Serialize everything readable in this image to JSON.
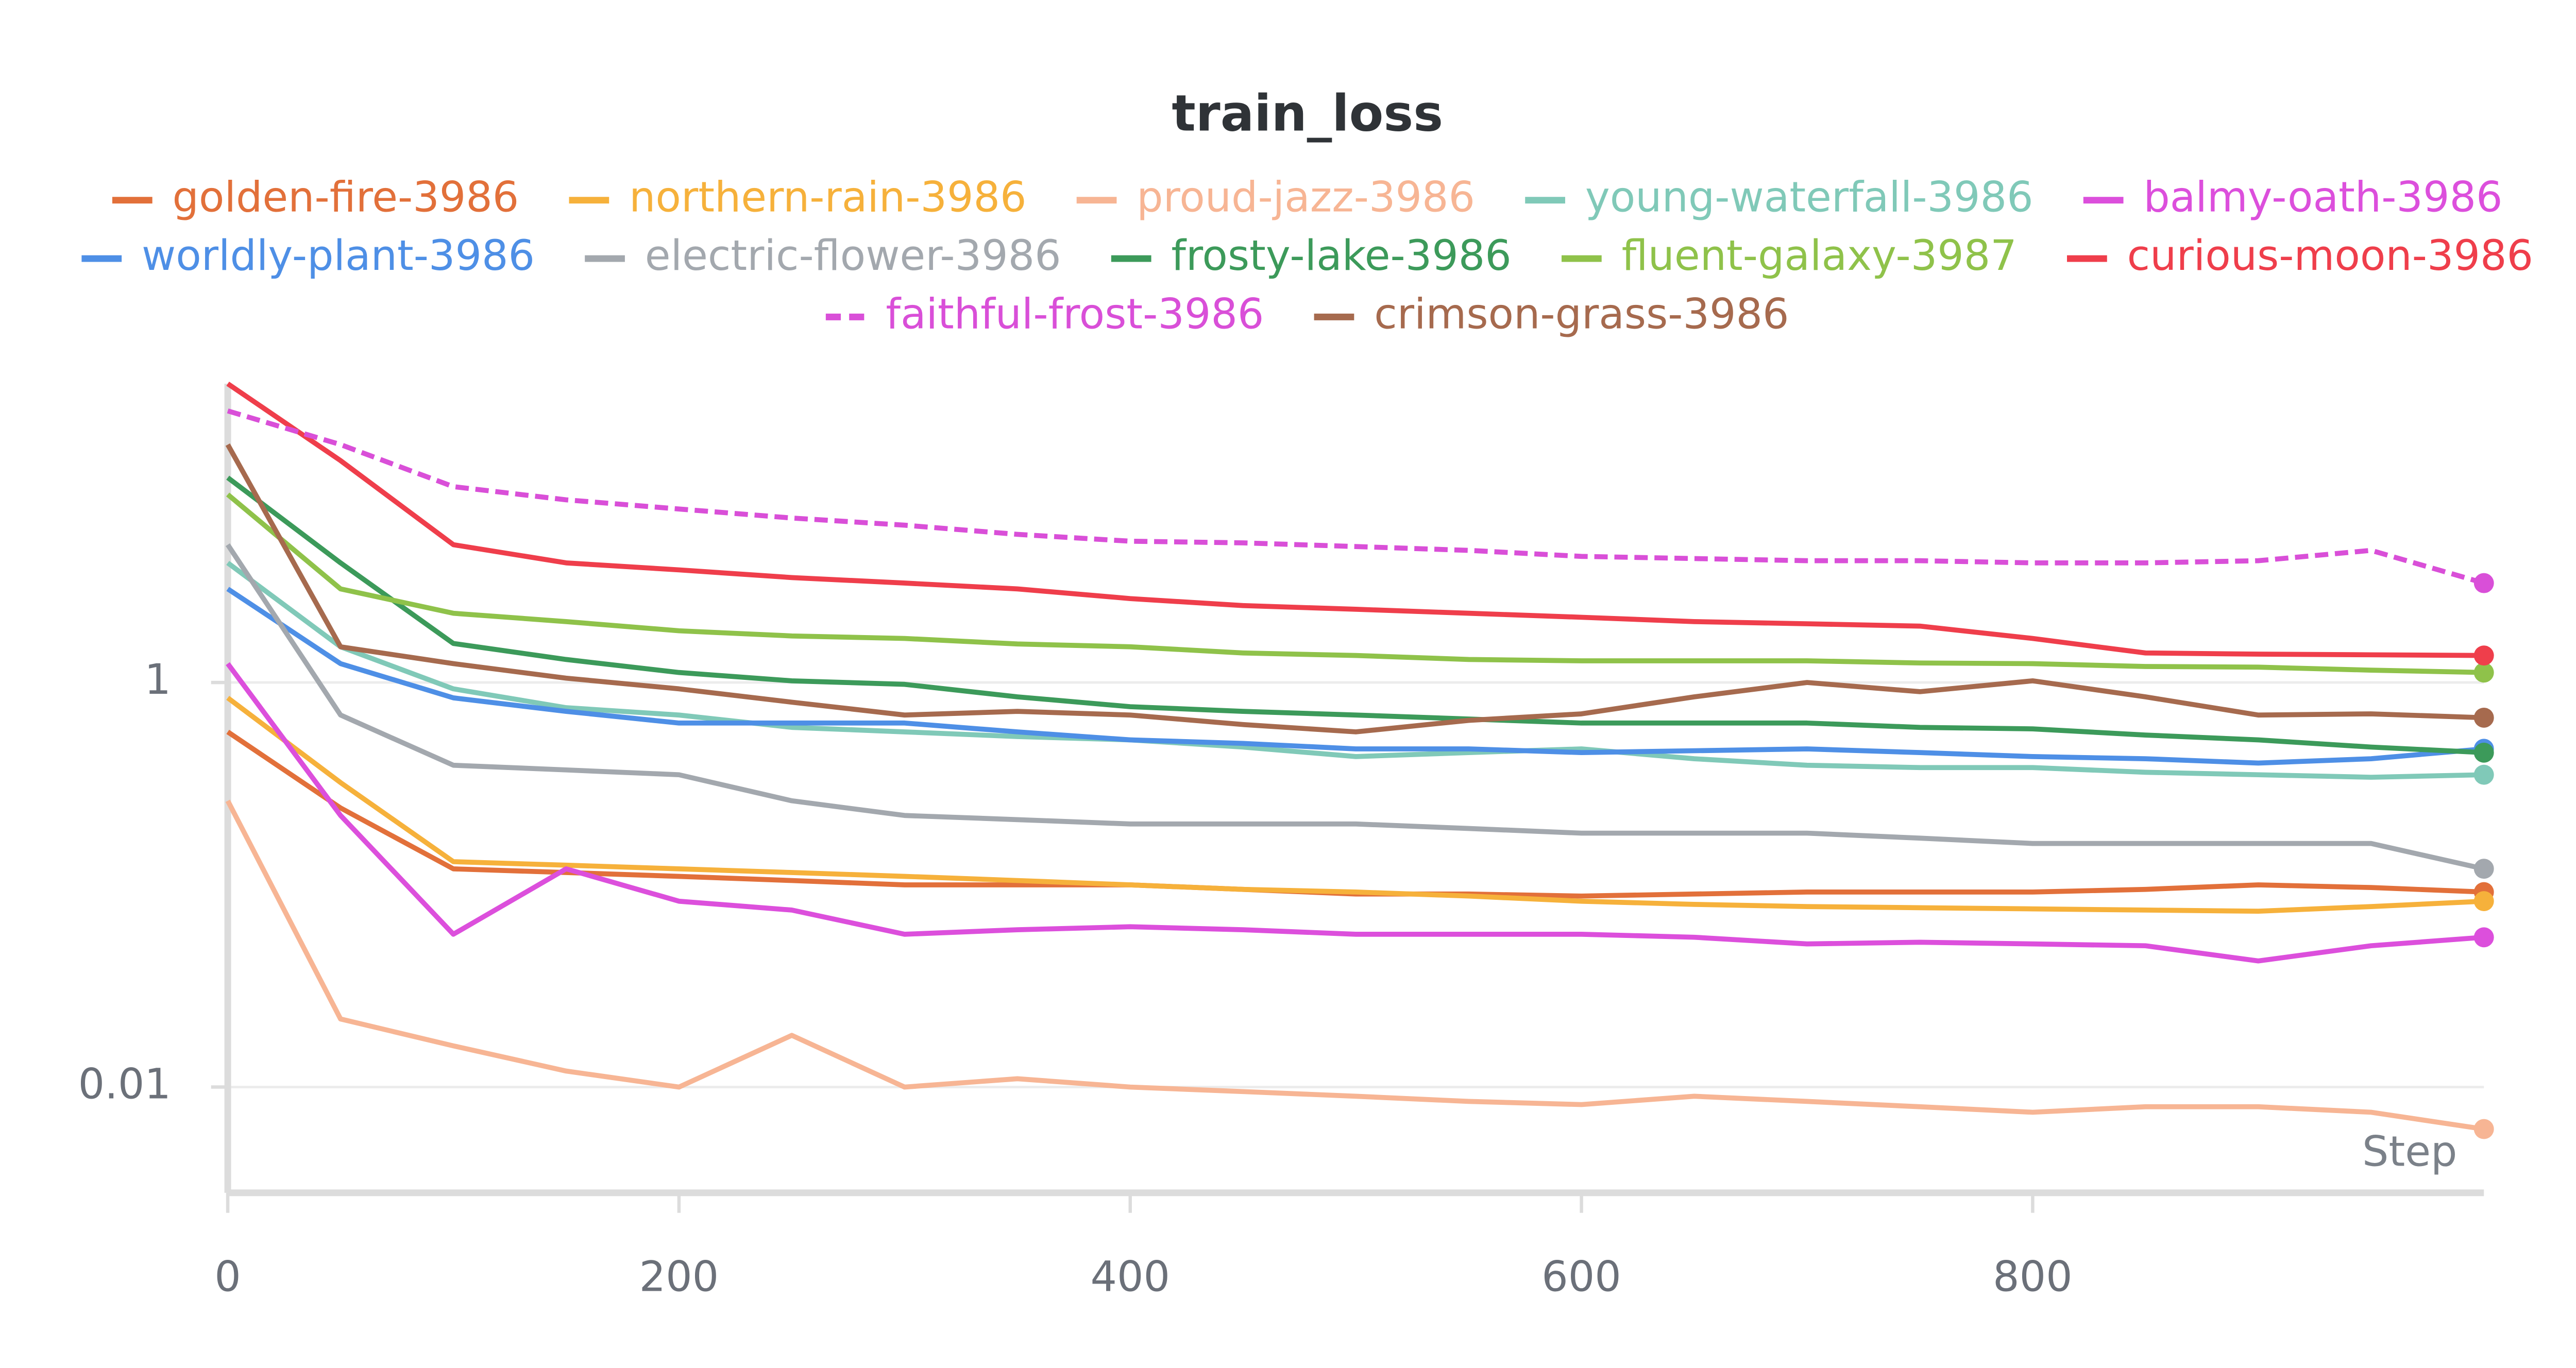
{
  "chart_data": {
    "type": "line",
    "title": "train_loss",
    "x_label": "Step",
    "xlim": [
      0,
      1000
    ],
    "xticks": [
      0,
      200,
      400,
      600,
      800
    ],
    "ylim": [
      0.003,
      30
    ],
    "yticks": [
      0.01,
      1
    ],
    "log_y": true,
    "grid": true,
    "x": [
      0,
      50,
      100,
      150,
      200,
      250,
      300,
      350,
      400,
      450,
      500,
      550,
      600,
      650,
      700,
      750,
      800,
      850,
      900,
      950,
      1000
    ],
    "series": [
      {
        "name": "golden-fire-3986",
        "color": "#e2703a",
        "values": [
          0.57,
          0.24,
          0.12,
          0.115,
          0.11,
          0.105,
          0.1,
          0.1,
          0.1,
          0.095,
          0.09,
          0.09,
          0.088,
          0.09,
          0.092,
          0.092,
          0.092,
          0.095,
          0.1,
          0.097,
          0.092
        ]
      },
      {
        "name": "northern-rain-3986",
        "color": "#f6b13b",
        "values": [
          0.84,
          0.32,
          0.13,
          0.125,
          0.12,
          0.115,
          0.11,
          0.105,
          0.1,
          0.095,
          0.092,
          0.088,
          0.083,
          0.08,
          0.078,
          0.077,
          0.076,
          0.075,
          0.074,
          0.078,
          0.083
        ]
      },
      {
        "name": "proud-jazz-3986",
        "color": "#f7b594",
        "values": [
          0.26,
          0.0217,
          0.016,
          0.012,
          0.01,
          0.018,
          0.01,
          0.011,
          0.01,
          0.0095,
          0.009,
          0.0085,
          0.0082,
          0.009,
          0.0085,
          0.008,
          0.0075,
          0.008,
          0.008,
          0.0075,
          0.0062
        ]
      },
      {
        "name": "young-waterfall-3986",
        "color": "#80c9b8",
        "values": [
          3.9,
          1.5,
          0.93,
          0.75,
          0.69,
          0.6,
          0.57,
          0.54,
          0.52,
          0.48,
          0.43,
          0.45,
          0.47,
          0.42,
          0.39,
          0.38,
          0.38,
          0.36,
          0.35,
          0.34,
          0.35
        ]
      },
      {
        "name": "balmy-oath-3986",
        "color": "#dc4fdc",
        "values": [
          1.24,
          0.22,
          0.057,
          0.12,
          0.083,
          0.075,
          0.057,
          0.06,
          0.062,
          0.06,
          0.057,
          0.057,
          0.057,
          0.055,
          0.051,
          0.052,
          0.051,
          0.05,
          0.042,
          0.05,
          0.055
        ]
      },
      {
        "name": "worldly-plant-3986",
        "color": "#4e8fe6",
        "values": [
          2.9,
          1.24,
          0.84,
          0.72,
          0.63,
          0.63,
          0.63,
          0.57,
          0.52,
          0.5,
          0.47,
          0.47,
          0.45,
          0.46,
          0.47,
          0.45,
          0.43,
          0.42,
          0.4,
          0.42,
          0.47
        ]
      },
      {
        "name": "electric-flower-3986",
        "color": "#a3a8ae",
        "values": [
          4.8,
          0.69,
          0.39,
          0.37,
          0.35,
          0.26,
          0.22,
          0.21,
          0.2,
          0.2,
          0.2,
          0.19,
          0.18,
          0.18,
          0.18,
          0.17,
          0.16,
          0.16,
          0.16,
          0.16,
          0.12
        ]
      },
      {
        "name": "frosty-lake-3986",
        "color": "#3c9a5a",
        "values": [
          10.3,
          3.9,
          1.56,
          1.3,
          1.12,
          1.02,
          0.98,
          0.85,
          0.76,
          0.72,
          0.69,
          0.66,
          0.63,
          0.63,
          0.63,
          0.6,
          0.59,
          0.55,
          0.52,
          0.48,
          0.45
        ]
      },
      {
        "name": "fluent-galaxy-3987",
        "color": "#8fc24a",
        "values": [
          8.5,
          2.9,
          2.2,
          2,
          1.8,
          1.7,
          1.65,
          1.55,
          1.5,
          1.4,
          1.36,
          1.3,
          1.28,
          1.28,
          1.28,
          1.25,
          1.24,
          1.2,
          1.19,
          1.15,
          1.12
        ]
      },
      {
        "name": "curious-moon-3986",
        "color": "#ef3e4b",
        "values": [
          30,
          12.5,
          4.8,
          3.9,
          3.6,
          3.3,
          3.1,
          2.9,
          2.6,
          2.4,
          2.3,
          2.2,
          2.1,
          2,
          1.95,
          1.9,
          1.65,
          1.4,
          1.38,
          1.37,
          1.36
        ]
      },
      {
        "name": "faithful-frost-3986",
        "color": "#d94fd8",
        "dashed": true,
        "values": [
          22,
          15,
          9.3,
          8,
          7.2,
          6.5,
          6,
          5.4,
          5,
          4.9,
          4.7,
          4.5,
          4.2,
          4.1,
          4,
          4,
          3.9,
          3.9,
          4,
          4.5,
          3.1
        ]
      },
      {
        "name": "crimson-grass-3986",
        "color": "#a66a4e",
        "values": [
          15,
          1.5,
          1.24,
          1.05,
          0.93,
          0.8,
          0.69,
          0.72,
          0.69,
          0.62,
          0.57,
          0.65,
          0.7,
          0.85,
          1,
          0.9,
          1.02,
          0.85,
          0.69,
          0.7,
          0.67
        ]
      }
    ]
  }
}
